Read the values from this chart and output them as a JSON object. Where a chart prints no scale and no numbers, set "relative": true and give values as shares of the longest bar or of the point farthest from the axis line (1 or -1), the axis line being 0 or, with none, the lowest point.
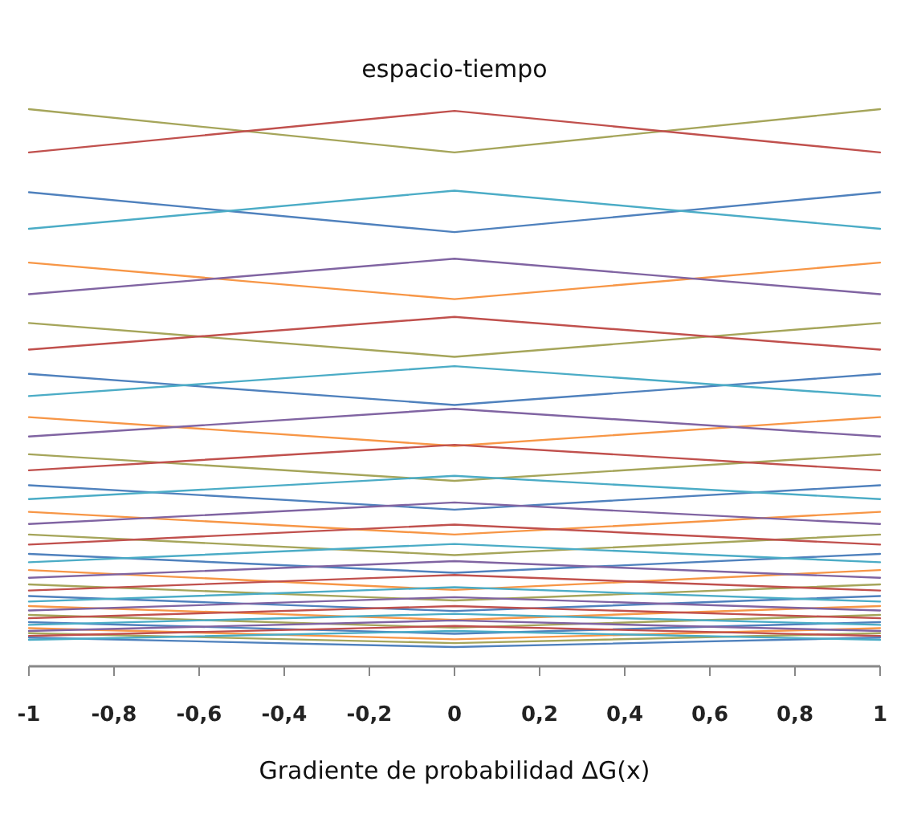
{
  "chart_data": {
    "type": "line",
    "title": "espacio-tiempo",
    "xlabel": "Gradiente de probabilidad ΔG(x)",
    "relative": true,
    "x": [
      -1,
      0,
      1
    ],
    "xlim": [
      -1,
      1
    ],
    "xticks": [
      -1,
      {
        "value": -0.8,
        "label": "-0,8"
      },
      {
        "value": -0.6,
        "label": "-0,6"
      },
      {
        "value": -0.4,
        "label": "-0,4"
      },
      {
        "value": -0.2,
        "label": "-0,2"
      },
      0,
      {
        "value": 0.2,
        "label": "0,2"
      },
      {
        "value": 0.4,
        "label": "0,4"
      },
      {
        "value": 0.6,
        "label": "0,6"
      },
      {
        "value": 0.8,
        "label": "0,8"
      },
      1
    ],
    "grid": false,
    "marker": "none",
    "line_style": "solid",
    "series": [
      {
        "color": "#a5a55a",
        "values": [
          1,
          0.922,
          1
        ]
      },
      {
        "color": "#c0504d",
        "values": [
          0.922,
          0.997,
          0.922
        ]
      },
      {
        "color": "#4f81bd",
        "values": [
          0.85,
          0.778,
          0.85
        ]
      },
      {
        "color": "#4bacc6",
        "values": [
          0.784,
          0.853,
          0.784
        ]
      },
      {
        "color": "#f79646",
        "values": [
          0.723,
          0.657,
          0.723
        ]
      },
      {
        "color": "#8064a2",
        "values": [
          0.666,
          0.73,
          0.666
        ]
      },
      {
        "color": "#a5a55a",
        "values": [
          0.614,
          0.553,
          0.614
        ]
      },
      {
        "color": "#c0504d",
        "values": [
          0.566,
          0.625,
          0.566
        ]
      },
      {
        "color": "#4f81bd",
        "values": [
          0.522,
          0.466,
          0.522
        ]
      },
      {
        "color": "#4bacc6",
        "values": [
          0.482,
          0.536,
          0.482
        ]
      },
      {
        "color": "#f79646",
        "values": [
          0.444,
          0.392,
          0.444
        ]
      },
      {
        "color": "#8064a2",
        "values": [
          0.409,
          0.459,
          0.409
        ]
      },
      {
        "color": "#a5a55a",
        "values": [
          0.377,
          0.329,
          0.377
        ]
      },
      {
        "color": "#c0504d",
        "values": [
          0.348,
          0.394,
          0.348
        ]
      },
      {
        "color": "#4f81bd",
        "values": [
          0.321,
          0.277,
          0.321
        ]
      },
      {
        "color": "#4bacc6",
        "values": [
          0.296,
          0.338,
          0.296
        ]
      },
      {
        "color": "#f79646",
        "values": [
          0.273,
          0.232,
          0.273
        ]
      },
      {
        "color": "#8064a2",
        "values": [
          0.251,
          0.29,
          0.251
        ]
      },
      {
        "color": "#a5a55a",
        "values": [
          0.232,
          0.195,
          0.232
        ]
      },
      {
        "color": "#c0504d",
        "values": [
          0.214,
          0.25,
          0.214
        ]
      },
      {
        "color": "#4f81bd",
        "values": [
          0.197,
          0.163,
          0.197
        ]
      },
      {
        "color": "#4bacc6",
        "values": [
          0.182,
          0.215,
          0.182
        ]
      },
      {
        "color": "#f79646",
        "values": [
          0.168,
          0.132,
          0.168
        ]
      },
      {
        "color": "#8064a2",
        "values": [
          0.154,
          0.184,
          0.154
        ]
      },
      {
        "color": "#a5a55a",
        "values": [
          0.142,
          0.113,
          0.142
        ]
      },
      {
        "color": "#c0504d",
        "values": [
          0.131,
          0.159,
          0.131
        ]
      },
      {
        "color": "#4f81bd",
        "values": [
          0.121,
          0.094,
          0.121
        ]
      },
      {
        "color": "#4bacc6",
        "values": [
          0.111,
          0.137,
          0.111
        ]
      },
      {
        "color": "#f79646",
        "values": [
          0.103,
          0.078,
          0.103
        ]
      },
      {
        "color": "#8064a2",
        "values": [
          0.095,
          0.119,
          0.095
        ]
      },
      {
        "color": "#a5a55a",
        "values": [
          0.087,
          0.064,
          0.087
        ]
      },
      {
        "color": "#c0504d",
        "values": [
          0.081,
          0.103,
          0.081
        ]
      },
      {
        "color": "#4f81bd",
        "values": [
          0.074,
          0.053,
          0.074
        ]
      },
      {
        "color": "#4bacc6",
        "values": [
          0.069,
          0.089,
          0.069
        ]
      },
      {
        "color": "#f79646",
        "values": [
          0.063,
          0.043,
          0.063
        ]
      },
      {
        "color": "#8064a2",
        "values": [
          0.058,
          0.077,
          0.058
        ]
      },
      {
        "color": "#a5a55a",
        "values": [
          0.054,
          0.036,
          0.054
        ]
      },
      {
        "color": "#c0504d",
        "values": [
          0.049,
          0.067,
          0.049
        ]
      },
      {
        "color": "#4f81bd",
        "values": [
          0.046,
          0.029,
          0.046
        ]
      },
      {
        "color": "#4bacc6",
        "values": [
          0.042,
          0.058,
          0.042
        ]
      }
    ]
  }
}
